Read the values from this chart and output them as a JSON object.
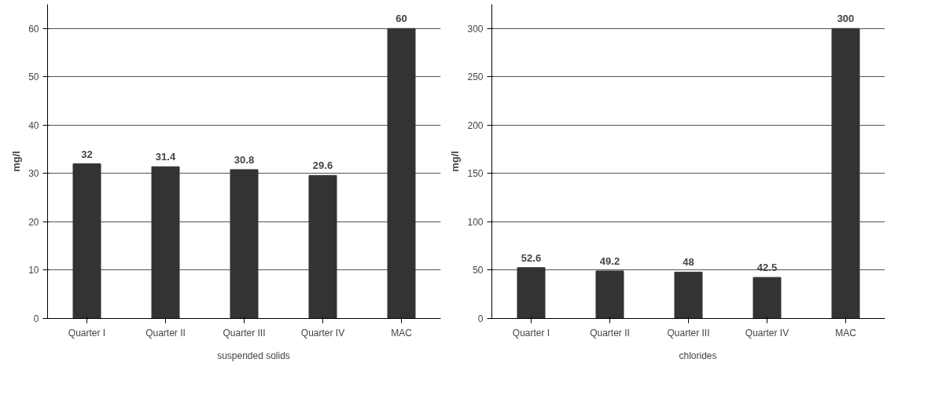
{
  "chart_data": [
    {
      "type": "bar",
      "ylabel": "mg/l",
      "categories": [
        "Quarter I",
        "Quarter II",
        "Quarter III",
        "Quarter IV",
        "MAC"
      ],
      "series": [
        {
          "name": "suspended solids",
          "color": "#333333",
          "values": [
            32,
            31.4,
            30.8,
            29.6,
            60
          ]
        }
      ],
      "ylim": [
        0,
        65
      ],
      "yticks": [
        0,
        10,
        20,
        30,
        40,
        50,
        60
      ],
      "grid": "y",
      "legend": "bottom",
      "data_labels": true
    },
    {
      "type": "bar",
      "ylabel": "mg/l",
      "categories": [
        "Quarter I",
        "Quarter II",
        "Quarter III",
        "Quarter IV",
        "MAC"
      ],
      "series": [
        {
          "name": "chlorides",
          "color": "#333333",
          "values": [
            52.6,
            49.2,
            48,
            42.5,
            300
          ]
        }
      ],
      "ylim": [
        0,
        325
      ],
      "yticks": [
        0,
        50,
        100,
        150,
        200,
        250,
        300
      ],
      "grid": "y",
      "legend": "bottom",
      "data_labels": true
    }
  ]
}
